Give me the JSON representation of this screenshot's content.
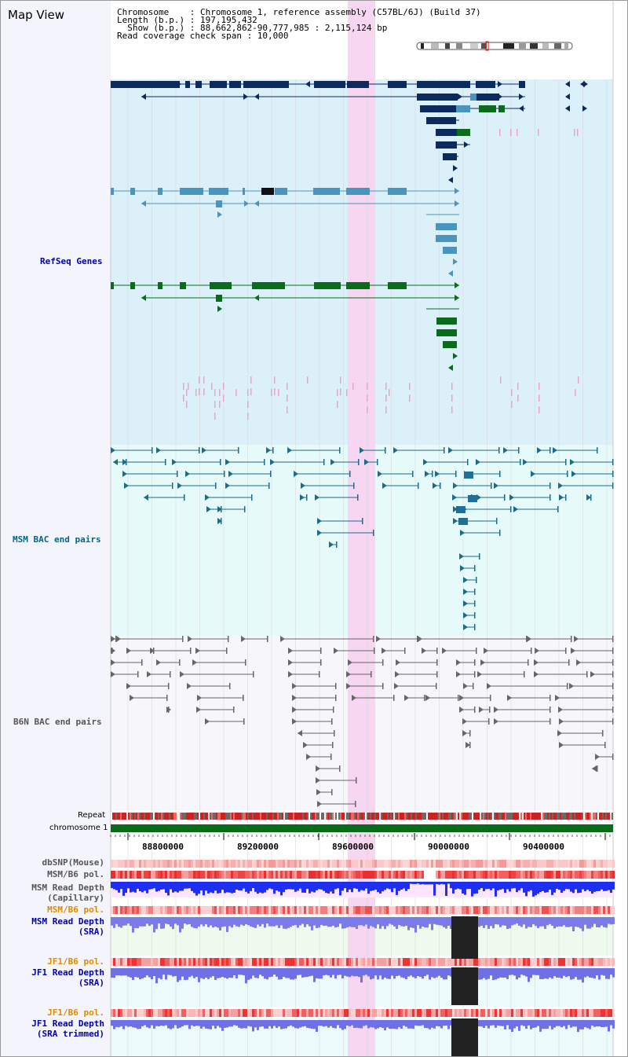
{
  "page_title": "Map View",
  "info": {
    "line1": "Chromosome    : Chromosome 1, reference assembly (C57BL/6J) (Build 37)",
    "line2": "Length (b.p.) : 197,195,432",
    "line3": "  Show (b.p.) : 88,662,862-90,777,985 : 2,115,124 bp",
    "line4": "Read coverage check span : 10,000"
  },
  "tracks": {
    "refseq": "RefSeq Genes",
    "msm_bac": "MSM BAC end pairs",
    "b6n_bac": "B6N BAC end pairs",
    "repeat": "Repeat",
    "chromosome": "chromosome 1",
    "dbsnp": "dbSNP(Mouse)",
    "msm_b6_pol": "MSM/B6 pol.",
    "msm_depth_cap_1": "MSM Read Depth",
    "msm_depth_cap_2": "(Capillary)",
    "msm_b6_pol_2": "MSM/B6 pol.",
    "msm_depth_sra_1": "MSM Read Depth",
    "msm_depth_sra_2": "(SRA)",
    "jf1_b6_pol": "JF1/B6 pol.",
    "jf1_depth_sra_1": "JF1 Read Depth",
    "jf1_depth_sra_2": "(SRA)",
    "jf1_b6_pol_2": "JF1/B6 pol.",
    "jf1_depth_trim_1": "JF1 Read Depth",
    "jf1_depth_trim_2": "(SRA trimmed)"
  },
  "axis": {
    "ticks": [
      "88800000",
      "89200000",
      "89600000",
      "90000000",
      "90400000"
    ]
  },
  "colors": {
    "refseq_bg": "#dcf0fa",
    "msm_bg": "#e6fafa",
    "highlight": "#f7d6f2",
    "gene_dark": "#0b2a5e",
    "gene_mid": "#4a95bd",
    "gene_green": "#0a6b1a",
    "chrom_bar": "#0a6b1a",
    "label_blue": "#0000aa",
    "label_teal": "#006688",
    "label_orange": "#e08a00"
  }
}
